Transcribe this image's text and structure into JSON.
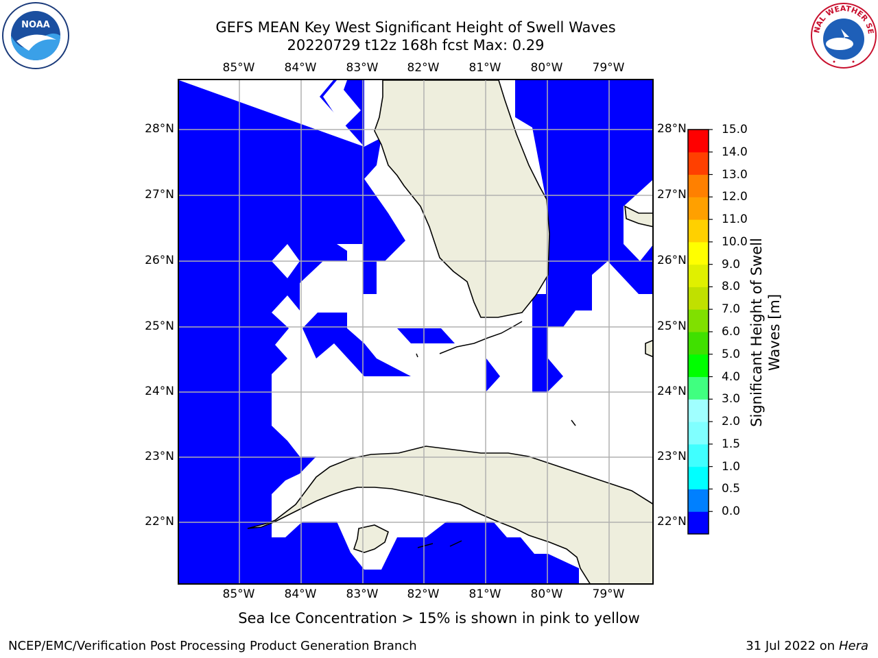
{
  "title": {
    "line1": "GEFS MEAN Key West Significant Height of Swell Waves",
    "line2": "20220729 t12z 168h fcst   Max: 0.29"
  },
  "logos": {
    "left": "noaa-logo",
    "right": "nws-logo",
    "left_text": "NOAA",
    "right_text": "NATIONAL WEATHER SERVICE"
  },
  "map": {
    "lon_ticks": [
      "85°W",
      "84°W",
      "83°W",
      "82°W",
      "81°W",
      "80°W",
      "79°W"
    ],
    "lat_ticks": [
      "28°N",
      "27°N",
      "26°N",
      "25°N",
      "24°N",
      "23°N",
      "22°N"
    ],
    "extent": {
      "lon_min": -86.0,
      "lon_max": -78.3,
      "lat_min": 21.0,
      "lat_max": 28.8
    },
    "colors": {
      "wave_low": "#0000ff",
      "land": "#eeeedd",
      "grid": "#b0b0b0",
      "coast": "#000000"
    }
  },
  "colorbar": {
    "label": "Significant Height of Swell Waves [m]",
    "ticks": [
      "15.0",
      "14.0",
      "13.0",
      "12.0",
      "11.0",
      "10.0",
      "9.0",
      "8.0",
      "7.0",
      "6.0",
      "5.0",
      "4.0",
      "3.0",
      "2.0",
      "1.5",
      "1.0",
      "0.5",
      "0.0"
    ],
    "colors": [
      "#0000ff",
      "#0080ff",
      "#00ffff",
      "#40ffff",
      "#80ffff",
      "#a0ffff",
      "#40ff80",
      "#00ff00",
      "#40e000",
      "#80e000",
      "#c0e000",
      "#e0f000",
      "#ffff00",
      "#ffd000",
      "#ffa000",
      "#ff8000",
      "#ff4000",
      "#ff0000"
    ]
  },
  "caption": "Sea Ice Concentration > 15% is shown in pink to yellow",
  "footer": {
    "left": "NCEP/EMC/Verification Post Processing Product Generation Branch",
    "right_date": "31 Jul 2022 on ",
    "right_host": "Hera"
  }
}
